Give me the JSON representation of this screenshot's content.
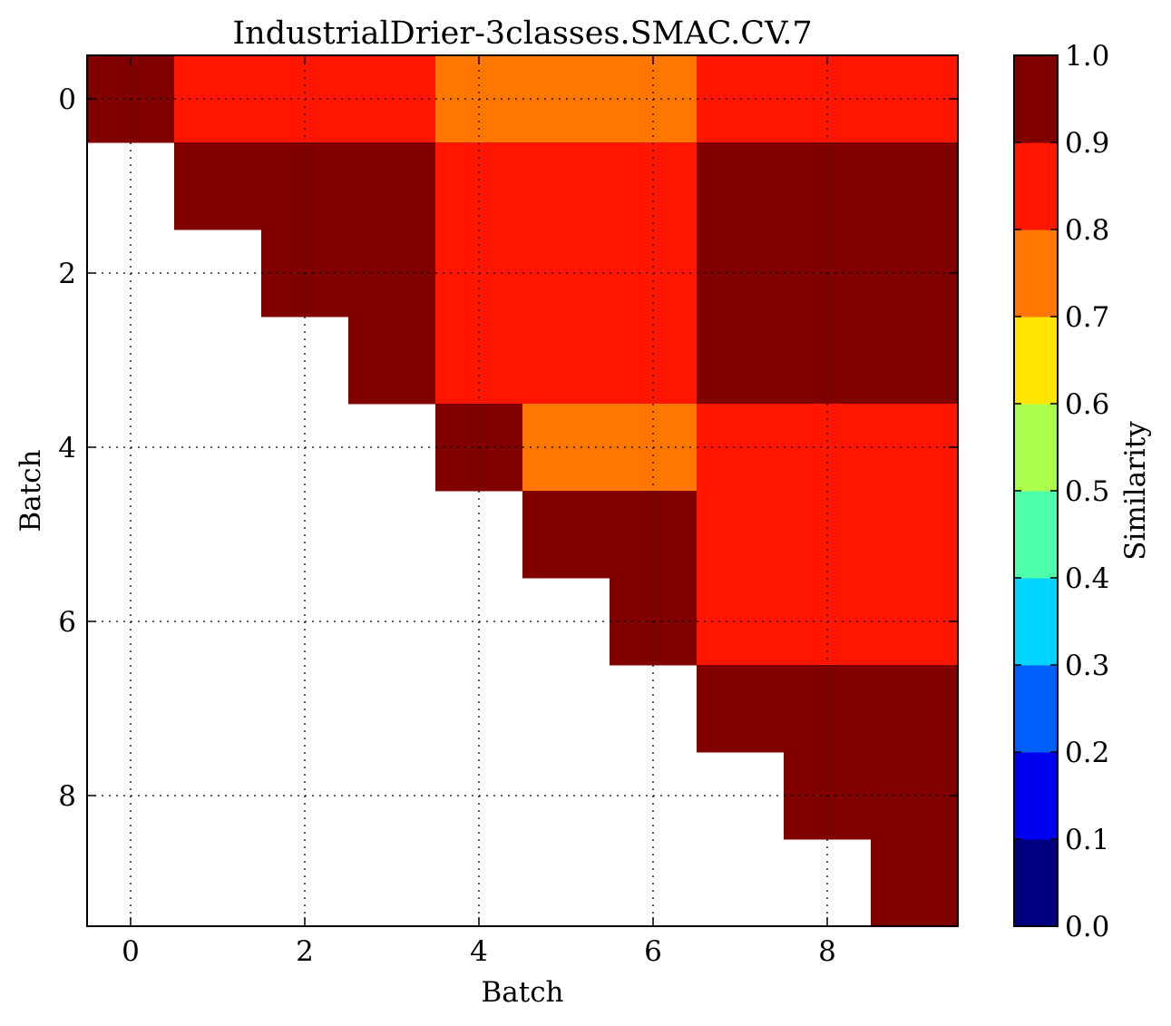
{
  "chart_data": {
    "type": "heatmap",
    "title": "IndustrialDrier-3classes.SMAC.CV.7",
    "xlabel": "Batch",
    "ylabel": "Batch",
    "colorbar_label": "Similarity",
    "x_ticks": [
      "0",
      "2",
      "4",
      "6",
      "8"
    ],
    "y_ticks": [
      "0",
      "2",
      "4",
      "6",
      "8"
    ],
    "colorbar_ticks": [
      "0.0",
      "0.1",
      "0.2",
      "0.3",
      "0.4",
      "0.5",
      "0.6",
      "0.7",
      "0.8",
      "0.9",
      "1.0"
    ],
    "xlim": [
      -0.5,
      9.5
    ],
    "ylim": [
      9.5,
      -0.5
    ],
    "clim": [
      0.0,
      1.0
    ],
    "grid": true,
    "colormap": "jet",
    "colormap_bins": [
      {
        "range": [
          0.0,
          0.1
        ],
        "color": "#000080"
      },
      {
        "range": [
          0.1,
          0.2
        ],
        "color": "#0000f1"
      },
      {
        "range": [
          0.2,
          0.3
        ],
        "color": "#0060ff"
      },
      {
        "range": [
          0.3,
          0.4
        ],
        "color": "#00d4ff"
      },
      {
        "range": [
          0.4,
          0.5
        ],
        "color": "#4dffaa"
      },
      {
        "range": [
          0.5,
          0.6
        ],
        "color": "#aaff4d"
      },
      {
        "range": [
          0.6,
          0.7
        ],
        "color": "#ffe500"
      },
      {
        "range": [
          0.7,
          0.8
        ],
        "color": "#ff7700"
      },
      {
        "range": [
          0.8,
          0.9
        ],
        "color": "#ff1600"
      },
      {
        "range": [
          0.9,
          1.0
        ],
        "color": "#800000"
      }
    ],
    "matrix": [
      [
        0.95,
        0.85,
        0.85,
        0.85,
        0.75,
        0.75,
        0.75,
        0.85,
        0.85,
        0.85
      ],
      [
        null,
        0.95,
        0.95,
        0.95,
        0.85,
        0.85,
        0.85,
        0.95,
        0.95,
        0.95
      ],
      [
        null,
        null,
        0.95,
        0.95,
        0.85,
        0.85,
        0.85,
        0.95,
        0.95,
        0.95
      ],
      [
        null,
        null,
        null,
        0.95,
        0.85,
        0.85,
        0.85,
        0.95,
        0.95,
        0.95
      ],
      [
        null,
        null,
        null,
        null,
        0.95,
        0.75,
        0.75,
        0.85,
        0.85,
        0.85
      ],
      [
        null,
        null,
        null,
        null,
        null,
        0.95,
        0.95,
        0.85,
        0.85,
        0.85
      ],
      [
        null,
        null,
        null,
        null,
        null,
        null,
        0.95,
        0.85,
        0.85,
        0.85
      ],
      [
        null,
        null,
        null,
        null,
        null,
        null,
        null,
        0.95,
        0.95,
        0.95
      ],
      [
        null,
        null,
        null,
        null,
        null,
        null,
        null,
        null,
        0.95,
        0.95
      ],
      [
        null,
        null,
        null,
        null,
        null,
        null,
        null,
        null,
        null,
        0.95
      ]
    ]
  }
}
